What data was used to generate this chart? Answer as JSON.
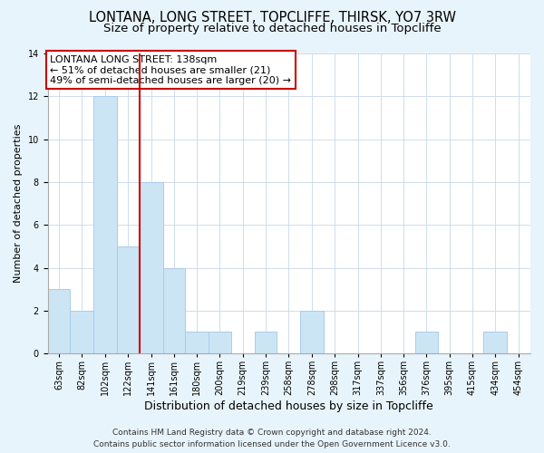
{
  "title": "LONTANA, LONG STREET, TOPCLIFFE, THIRSK, YO7 3RW",
  "subtitle": "Size of property relative to detached houses in Topcliffe",
  "xlabel": "Distribution of detached houses by size in Topcliffe",
  "ylabel": "Number of detached properties",
  "bar_color": "#cce5f5",
  "bar_edgecolor": "#aacce8",
  "reference_line_x": 141,
  "reference_line_color": "#cc0000",
  "bins": [
    63,
    82,
    102,
    122,
    141,
    161,
    180,
    200,
    219,
    239,
    258,
    278,
    298,
    317,
    337,
    356,
    376,
    395,
    415,
    434,
    454
  ],
  "counts": [
    3,
    2,
    12,
    5,
    8,
    4,
    1,
    1,
    0,
    1,
    0,
    2,
    0,
    0,
    0,
    0,
    1,
    0,
    0,
    1,
    0
  ],
  "tick_labels": [
    "63sqm",
    "82sqm",
    "102sqm",
    "122sqm",
    "141sqm",
    "161sqm",
    "180sqm",
    "200sqm",
    "219sqm",
    "239sqm",
    "258sqm",
    "278sqm",
    "298sqm",
    "317sqm",
    "337sqm",
    "356sqm",
    "376sqm",
    "395sqm",
    "415sqm",
    "434sqm",
    "454sqm"
  ],
  "ylim": [
    0,
    14
  ],
  "yticks": [
    0,
    2,
    4,
    6,
    8,
    10,
    12,
    14
  ],
  "annotation_title": "LONTANA LONG STREET: 138sqm",
  "annotation_line1": "← 51% of detached houses are smaller (21)",
  "annotation_line2": "49% of semi-detached houses are larger (20) →",
  "annotation_box_color": "white",
  "annotation_box_edgecolor": "#cc0000",
  "footer_line1": "Contains HM Land Registry data © Crown copyright and database right 2024.",
  "footer_line2": "Contains public sector information licensed under the Open Government Licence v3.0.",
  "background_color": "#e8f4fb",
  "plot_background": "white",
  "title_fontsize": 10.5,
  "subtitle_fontsize": 9.5,
  "xlabel_fontsize": 9,
  "ylabel_fontsize": 8,
  "tick_fontsize": 7,
  "footer_fontsize": 6.5,
  "annotation_fontsize": 8
}
